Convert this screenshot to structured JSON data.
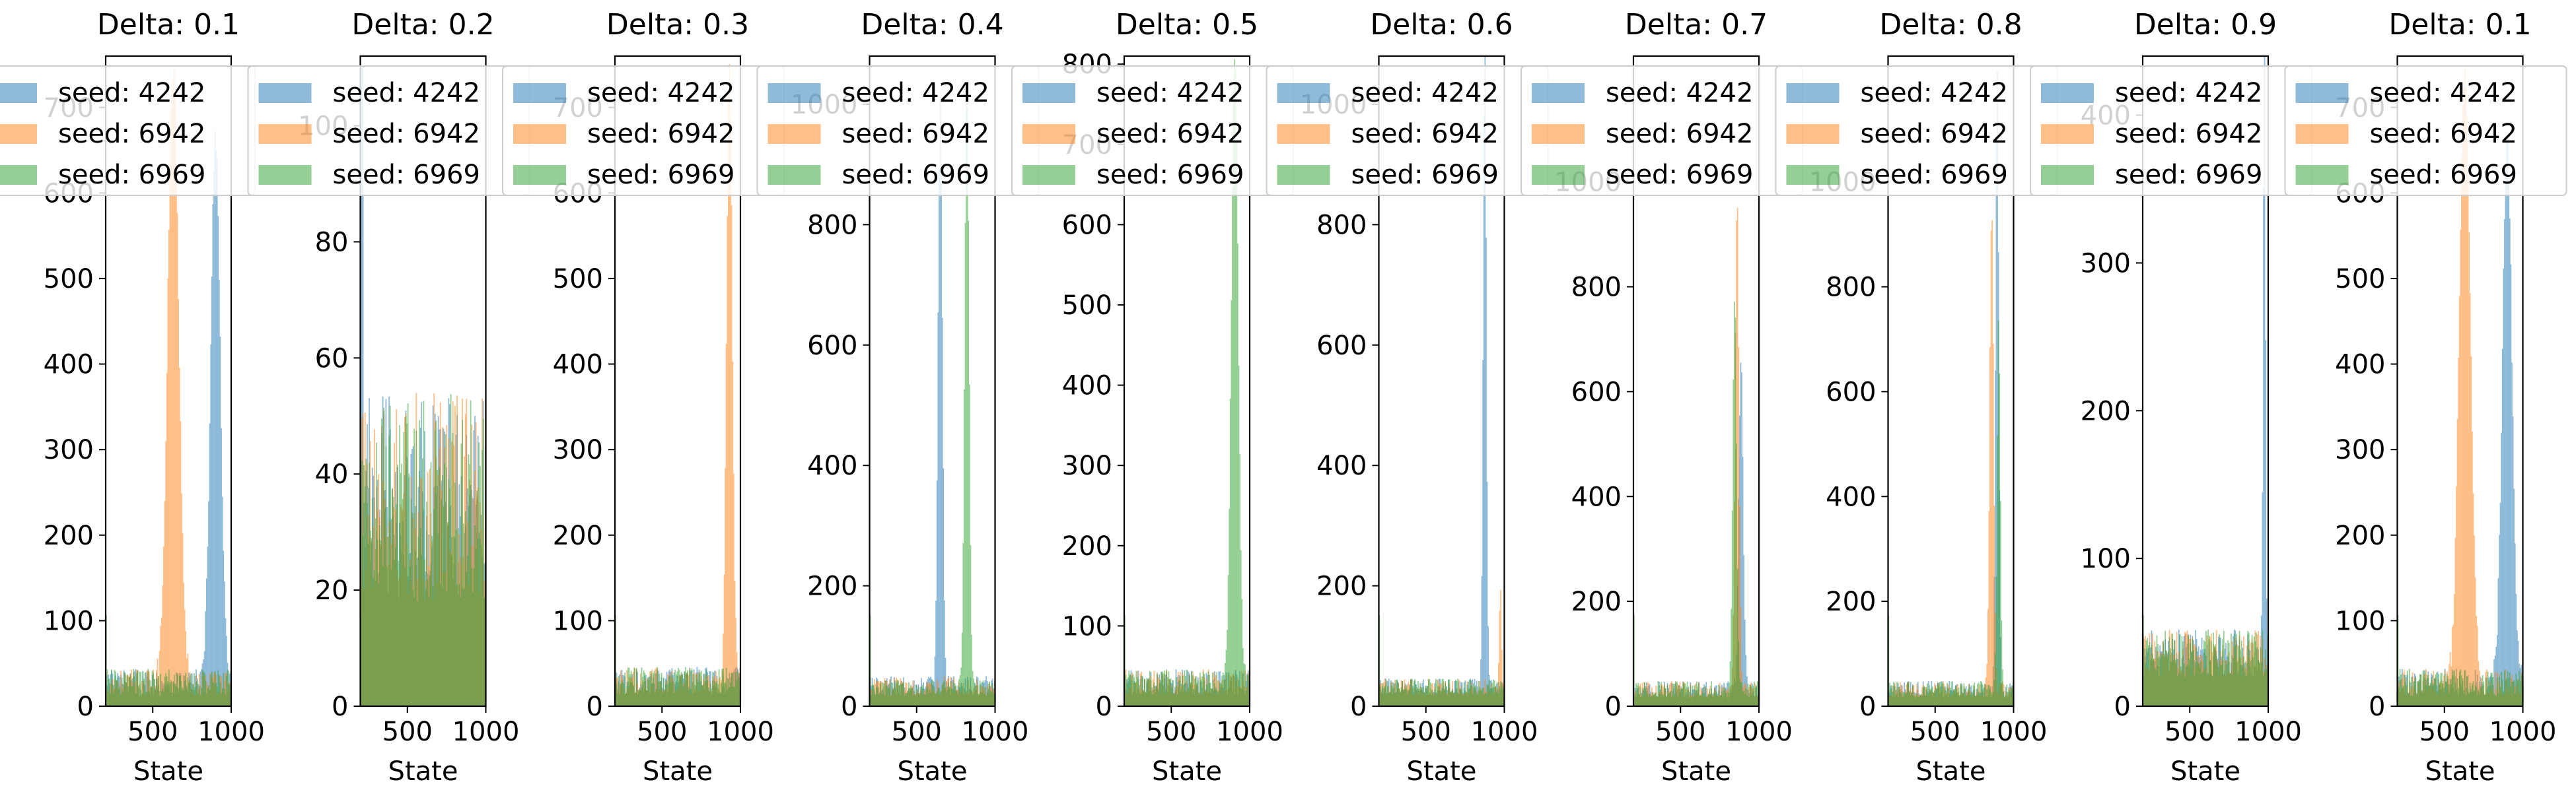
{
  "series_colors": {
    "seed: 4242": "#1f77b4",
    "seed: 6942": "#ff7f0e",
    "seed: 6969": "#2ca02c"
  },
  "chart_data": [
    {
      "type": "bar",
      "title": "Delta: 0.1",
      "xlabel": "State",
      "ylabel": "",
      "xlim": [
        200,
        1000
      ],
      "ylim": [
        0,
        760
      ],
      "xticks": [
        500,
        1000
      ],
      "yticks": [
        0,
        100,
        200,
        300,
        400,
        500,
        600,
        700
      ],
      "legend": "upper left",
      "legend_labels": [
        "seed: 4242",
        "seed: 6942",
        "seed: 6969"
      ],
      "series": [
        {
          "name": "seed: 4242",
          "baseline": 28,
          "noise": 16,
          "peak_center": 900,
          "peak_sigma": 30,
          "peak_height": 640
        },
        {
          "name": "seed: 6942",
          "baseline": 28,
          "noise": 16,
          "peak_center": 630,
          "peak_sigma": 35,
          "peak_height": 720
        },
        {
          "name": "seed: 6969",
          "baseline": 28,
          "noise": 16
        }
      ]
    },
    {
      "type": "bar",
      "title": "Delta: 0.2",
      "xlabel": "State",
      "ylabel": "",
      "xlim": [
        200,
        1000
      ],
      "ylim": [
        0,
        112
      ],
      "xticks": [
        500,
        1000
      ],
      "yticks": [
        0,
        20,
        40,
        60,
        80,
        100
      ],
      "legend": "upper left",
      "legend_labels": [
        "seed: 4242",
        "seed: 6942",
        "seed: 6969"
      ],
      "series": [
        {
          "name": "seed: 4242",
          "baseline": 36,
          "noise": 18,
          "spike_x": 210,
          "spike_height": 110
        },
        {
          "name": "seed: 6942",
          "baseline": 36,
          "noise": 18
        },
        {
          "name": "seed: 6969",
          "baseline": 36,
          "noise": 18
        }
      ]
    },
    {
      "type": "bar",
      "title": "Delta: 0.3",
      "xlabel": "State",
      "ylabel": "",
      "xlim": [
        200,
        1000
      ],
      "ylim": [
        0,
        760
      ],
      "xticks": [
        500,
        1000
      ],
      "yticks": [
        0,
        100,
        200,
        300,
        400,
        500,
        600,
        700
      ],
      "legend": "upper left",
      "legend_labels": [
        "seed: 4242",
        "seed: 6942",
        "seed: 6969"
      ],
      "series": [
        {
          "name": "seed: 4242",
          "baseline": 30,
          "noise": 16
        },
        {
          "name": "seed: 6942",
          "baseline": 30,
          "noise": 16,
          "peak_center": 930,
          "peak_sigma": 18,
          "peak_height": 720
        },
        {
          "name": "seed: 6969",
          "baseline": 30,
          "noise": 16
        }
      ]
    },
    {
      "type": "bar",
      "title": "Delta: 0.4",
      "xlabel": "State",
      "ylabel": "",
      "xlim": [
        200,
        1000
      ],
      "ylim": [
        0,
        1080
      ],
      "xticks": [
        500,
        1000
      ],
      "yticks": [
        0,
        200,
        400,
        600,
        800,
        1000
      ],
      "legend": "upper left",
      "legend_labels": [
        "seed: 4242",
        "seed: 6942",
        "seed: 6969"
      ],
      "series": [
        {
          "name": "seed: 4242",
          "baseline": 34,
          "noise": 16,
          "peak_center": 650,
          "peak_sigma": 14,
          "peak_height": 960
        },
        {
          "name": "seed: 6942",
          "baseline": 34,
          "noise": 16
        },
        {
          "name": "seed: 6969",
          "baseline": 30,
          "noise": 14,
          "peak_center": 820,
          "peak_sigma": 14,
          "peak_height": 1000
        }
      ]
    },
    {
      "type": "bar",
      "title": "Delta: 0.5",
      "xlabel": "State",
      "ylabel": "",
      "xlim": [
        200,
        1000
      ],
      "ylim": [
        0,
        810
      ],
      "xticks": [
        500,
        1000
      ],
      "yticks": [
        0,
        100,
        200,
        300,
        400,
        500,
        600,
        700,
        800
      ],
      "legend": "upper left",
      "legend_labels": [
        "seed: 4242",
        "seed: 6942",
        "seed: 6969"
      ],
      "series": [
        {
          "name": "seed: 4242",
          "baseline": 30,
          "noise": 16
        },
        {
          "name": "seed: 6942",
          "baseline": 30,
          "noise": 16
        },
        {
          "name": "seed: 6969",
          "baseline": 30,
          "noise": 16,
          "peak_center": 905,
          "peak_sigma": 22,
          "peak_height": 780
        }
      ]
    },
    {
      "type": "bar",
      "title": "Delta: 0.6",
      "xlabel": "State",
      "ylabel": "",
      "xlim": [
        200,
        1000
      ],
      "ylim": [
        0,
        1080
      ],
      "xticks": [
        500,
        1000
      ],
      "yticks": [
        0,
        200,
        400,
        600,
        800,
        1000
      ],
      "legend": "upper left",
      "legend_labels": [
        "seed: 4242",
        "seed: 6942",
        "seed: 6969"
      ],
      "series": [
        {
          "name": "seed: 4242",
          "baseline": 32,
          "noise": 14,
          "peak_center": 875,
          "peak_sigma": 10,
          "peak_height": 1060
        },
        {
          "name": "seed: 6942",
          "baseline": 32,
          "noise": 14,
          "peak_center": 975,
          "peak_sigma": 6,
          "peak_height": 180
        },
        {
          "name": "seed: 6969",
          "baseline": 32,
          "noise": 14
        }
      ]
    },
    {
      "type": "bar",
      "title": "Delta: 0.7",
      "xlabel": "State",
      "ylabel": "",
      "xlim": [
        200,
        1000
      ],
      "ylim": [
        0,
        1240
      ],
      "xticks": [
        500,
        1000
      ],
      "yticks": [
        0,
        200,
        400,
        600,
        800,
        1000
      ],
      "legend": "upper left",
      "legend_labels": [
        "seed: 4242",
        "seed: 6942",
        "seed: 6969"
      ],
      "series": [
        {
          "name": "seed: 4242",
          "baseline": 32,
          "noise": 16,
          "peak_center": 885,
          "peak_sigma": 14,
          "peak_height": 640
        },
        {
          "name": "seed: 6942",
          "baseline": 32,
          "noise": 16,
          "peak_center": 860,
          "peak_sigma": 12,
          "peak_height": 940
        },
        {
          "name": "seed: 6969",
          "baseline": 32,
          "noise": 16,
          "peak_center": 845,
          "peak_sigma": 12,
          "peak_height": 760
        }
      ]
    },
    {
      "type": "bar",
      "title": "Delta: 0.8",
      "xlabel": "State",
      "ylabel": "",
      "xlim": [
        200,
        1000
      ],
      "ylim": [
        0,
        1240
      ],
      "xticks": [
        500,
        1000
      ],
      "yticks": [
        0,
        200,
        400,
        600,
        800,
        1000
      ],
      "legend": "upper left",
      "legend_labels": [
        "seed: 4242",
        "seed: 6942",
        "seed: 6969"
      ],
      "series": [
        {
          "name": "seed: 4242",
          "baseline": 32,
          "noise": 16,
          "peak_center": 895,
          "peak_sigma": 10,
          "peak_height": 1180
        },
        {
          "name": "seed: 6942",
          "baseline": 32,
          "noise": 16,
          "peak_center": 860,
          "peak_sigma": 12,
          "peak_height": 920
        },
        {
          "name": "seed: 6969",
          "baseline": 32,
          "noise": 16,
          "peak_center": 905,
          "peak_sigma": 10,
          "peak_height": 700
        }
      ]
    },
    {
      "type": "bar",
      "title": "Delta: 0.9",
      "xlabel": "State",
      "ylabel": "",
      "xlim": [
        200,
        1000
      ],
      "ylim": [
        0,
        440
      ],
      "xticks": [
        500,
        1000
      ],
      "yticks": [
        0,
        100,
        200,
        300,
        400
      ],
      "legend": "upper left",
      "legend_labels": [
        "seed: 4242",
        "seed: 6942",
        "seed: 6969"
      ],
      "series": [
        {
          "name": "seed: 4242",
          "baseline": 36,
          "noise": 16,
          "peak_center": 975,
          "peak_sigma": 7,
          "peak_height": 420
        },
        {
          "name": "seed: 6942",
          "baseline": 36,
          "noise": 16
        },
        {
          "name": "seed: 6969",
          "baseline": 36,
          "noise": 16
        }
      ]
    },
    {
      "type": "bar",
      "title": "Delta: 0.1",
      "xlabel": "State",
      "ylabel": "",
      "xlim": [
        200,
        1000
      ],
      "ylim": [
        0,
        760
      ],
      "xticks": [
        500,
        1000
      ],
      "yticks": [
        0,
        100,
        200,
        300,
        400,
        500,
        600,
        700
      ],
      "legend": "upper left",
      "legend_labels": [
        "seed: 4242",
        "seed: 6942",
        "seed: 6969"
      ],
      "series": [
        {
          "name": "seed: 4242",
          "baseline": 28,
          "noise": 16,
          "peak_center": 900,
          "peak_sigma": 30,
          "peak_height": 640
        },
        {
          "name": "seed: 6942",
          "baseline": 28,
          "noise": 16,
          "peak_center": 630,
          "peak_sigma": 35,
          "peak_height": 720
        },
        {
          "name": "seed: 6969",
          "baseline": 28,
          "noise": 16
        }
      ]
    }
  ]
}
